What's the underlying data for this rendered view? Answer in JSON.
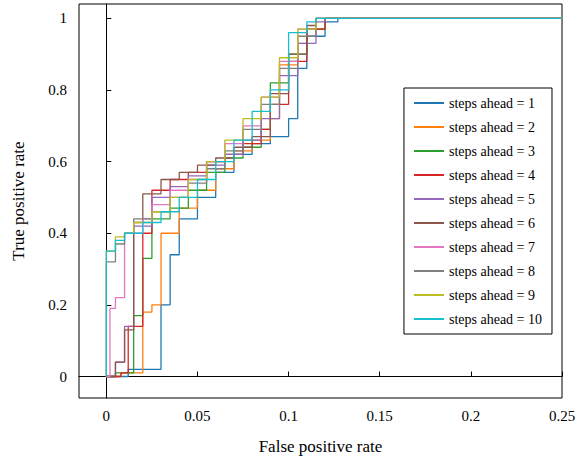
{
  "chart_data": {
    "type": "line",
    "x_label": "False positive rate",
    "y_label": "True positive rate",
    "xlim": [
      -0.015,
      0.25
    ],
    "ylim": [
      -0.06,
      1.04
    ],
    "xticks": [
      0,
      0.05,
      0.1,
      0.15,
      0.2,
      0.25
    ],
    "yticks": [
      0,
      0.2,
      0.4,
      0.6,
      0.8,
      1
    ],
    "grid": false,
    "legend": "right",
    "line_style": "step",
    "series": [
      {
        "name": "steps ahead = 1",
        "color": "#1f77b4",
        "x": [
          0,
          0.012,
          0.03,
          0.035,
          0.04,
          0.05,
          0.06,
          0.07,
          0.08,
          0.09,
          0.1,
          0.105,
          0.11,
          0.12,
          0.127,
          0.25
        ],
        "values": [
          0,
          0.02,
          0.2,
          0.34,
          0.44,
          0.5,
          0.57,
          0.62,
          0.65,
          0.67,
          0.72,
          0.86,
          0.95,
          0.99,
          1,
          1
        ]
      },
      {
        "name": "steps ahead = 2",
        "color": "#ff7f0e",
        "x": [
          0,
          0.008,
          0.02,
          0.025,
          0.03,
          0.04,
          0.05,
          0.06,
          0.07,
          0.08,
          0.09,
          0.095,
          0.105,
          0.11,
          0.12,
          0.25
        ],
        "values": [
          0,
          0.01,
          0.18,
          0.2,
          0.4,
          0.47,
          0.52,
          0.58,
          0.63,
          0.66,
          0.72,
          0.87,
          0.93,
          0.97,
          1,
          1
        ]
      },
      {
        "name": "steps ahead = 3",
        "color": "#2ca02c",
        "x": [
          0,
          0.005,
          0.015,
          0.02,
          0.025,
          0.035,
          0.045,
          0.055,
          0.065,
          0.075,
          0.085,
          0.09,
          0.1,
          0.11,
          0.12,
          0.25
        ],
        "values": [
          0,
          0.01,
          0.17,
          0.33,
          0.44,
          0.47,
          0.52,
          0.57,
          0.61,
          0.64,
          0.69,
          0.82,
          0.9,
          0.97,
          1,
          1
        ]
      },
      {
        "name": "steps ahead = 4",
        "color": "#d62728",
        "x": [
          0,
          0.008,
          0.012,
          0.02,
          0.025,
          0.035,
          0.045,
          0.055,
          0.065,
          0.075,
          0.085,
          0.09,
          0.1,
          0.11,
          0.12,
          0.25
        ],
        "values": [
          0,
          0.01,
          0.14,
          0.4,
          0.52,
          0.55,
          0.57,
          0.6,
          0.62,
          0.65,
          0.69,
          0.76,
          0.88,
          0.97,
          1,
          1
        ]
      },
      {
        "name": "steps ahead = 5",
        "color": "#9467bd",
        "x": [
          0,
          0.005,
          0.01,
          0.015,
          0.025,
          0.035,
          0.045,
          0.055,
          0.065,
          0.075,
          0.085,
          0.095,
          0.105,
          0.115,
          0.12,
          0.25
        ],
        "values": [
          0,
          0.04,
          0.14,
          0.42,
          0.5,
          0.53,
          0.56,
          0.59,
          0.62,
          0.66,
          0.72,
          0.84,
          0.93,
          0.99,
          1,
          1
        ]
      },
      {
        "name": "steps ahead = 6",
        "color": "#8c564b",
        "x": [
          0,
          0.005,
          0.01,
          0.015,
          0.02,
          0.03,
          0.04,
          0.05,
          0.06,
          0.07,
          0.08,
          0.09,
          0.1,
          0.11,
          0.115,
          0.25
        ],
        "values": [
          0,
          0.04,
          0.13,
          0.43,
          0.51,
          0.55,
          0.57,
          0.59,
          0.61,
          0.64,
          0.67,
          0.79,
          0.9,
          0.98,
          1,
          1
        ]
      },
      {
        "name": "steps ahead = 7",
        "color": "#e377c2",
        "x": [
          0,
          0.002,
          0.005,
          0.01,
          0.02,
          0.025,
          0.035,
          0.045,
          0.055,
          0.065,
          0.075,
          0.085,
          0.095,
          0.105,
          0.115,
          0.25
        ],
        "values": [
          0,
          0.19,
          0.22,
          0.4,
          0.44,
          0.48,
          0.52,
          0.55,
          0.6,
          0.65,
          0.7,
          0.78,
          0.88,
          0.97,
          1,
          1
        ]
      },
      {
        "name": "steps ahead = 8",
        "color": "#7f7f7f",
        "x": [
          0,
          0,
          0.005,
          0.01,
          0.015,
          0.025,
          0.035,
          0.045,
          0.055,
          0.065,
          0.075,
          0.085,
          0.095,
          0.105,
          0.115,
          0.25
        ],
        "values": [
          0,
          0.32,
          0.37,
          0.4,
          0.44,
          0.46,
          0.5,
          0.54,
          0.58,
          0.63,
          0.69,
          0.76,
          0.86,
          0.95,
          1,
          1
        ]
      },
      {
        "name": "steps ahead = 9",
        "color": "#bcbd22",
        "x": [
          0,
          0,
          0.005,
          0.01,
          0.015,
          0.025,
          0.035,
          0.045,
          0.055,
          0.065,
          0.075,
          0.085,
          0.095,
          0.105,
          0.115,
          0.25
        ],
        "values": [
          0,
          0.35,
          0.39,
          0.4,
          0.43,
          0.46,
          0.5,
          0.55,
          0.6,
          0.66,
          0.72,
          0.78,
          0.89,
          0.97,
          1,
          1
        ]
      },
      {
        "name": "steps ahead = 10",
        "color": "#17becf",
        "x": [
          0,
          0,
          0.005,
          0.01,
          0.02,
          0.03,
          0.04,
          0.05,
          0.06,
          0.07,
          0.08,
          0.09,
          0.1,
          0.11,
          0.115,
          0.25
        ],
        "values": [
          0,
          0.35,
          0.38,
          0.4,
          0.43,
          0.46,
          0.5,
          0.55,
          0.6,
          0.66,
          0.74,
          0.8,
          0.96,
          0.99,
          1,
          1
        ]
      }
    ]
  }
}
